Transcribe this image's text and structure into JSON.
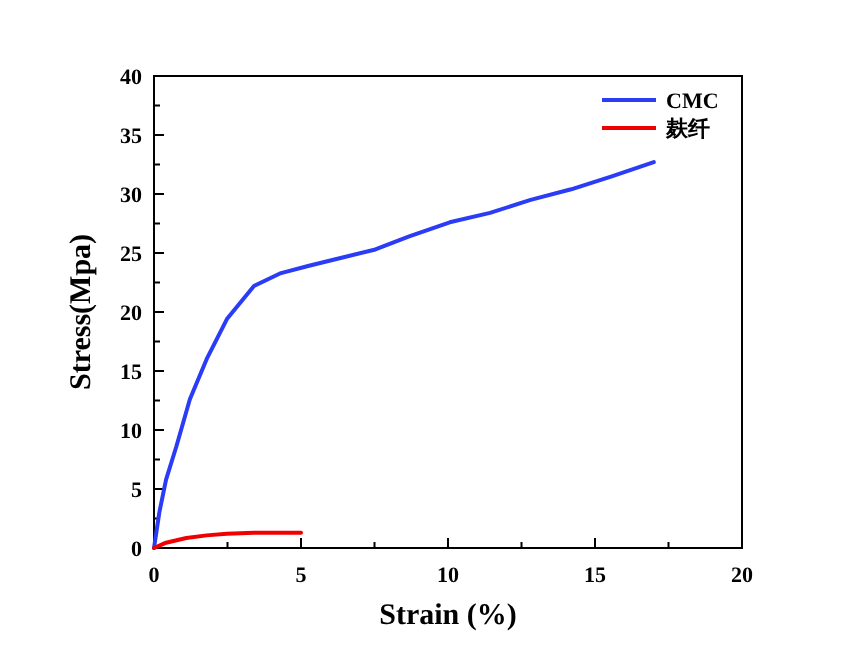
{
  "chart_data": {
    "type": "line",
    "xlabel": "Strain (%)",
    "ylabel": "Stress(Mpa)",
    "xlim": [
      0,
      20
    ],
    "xticks": [
      0,
      5,
      10,
      15,
      20
    ],
    "ylim": [
      0,
      40
    ],
    "yticks": [
      0,
      5,
      10,
      15,
      20,
      25,
      30,
      35,
      40
    ],
    "grid": false,
    "legend": "top right",
    "marker": "none",
    "line_style": "solid",
    "series": [
      {
        "name": "CMC",
        "color": "#2a3cf5",
        "x": [
          0,
          0.18,
          0.41,
          0.76,
          1.22,
          1.79,
          2.48,
          3.4,
          4.32,
          5.24,
          6.38,
          7.53,
          8.68,
          10.06,
          11.43,
          12.81,
          14.19,
          15.57,
          17.0
        ],
        "values": [
          0,
          3.0,
          5.8,
          8.6,
          12.6,
          16.0,
          19.4,
          22.2,
          23.3,
          23.9,
          24.6,
          25.3,
          26.4,
          27.6,
          28.4,
          29.5,
          30.4,
          31.5,
          32.7
        ]
      },
      {
        "name": "麸纤",
        "color": "#f00000",
        "x": [
          0,
          0.41,
          1.1,
          1.79,
          2.48,
          3.4,
          5.0
        ],
        "values": [
          0,
          0.45,
          0.85,
          1.07,
          1.2,
          1.3,
          1.3
        ]
      }
    ]
  }
}
